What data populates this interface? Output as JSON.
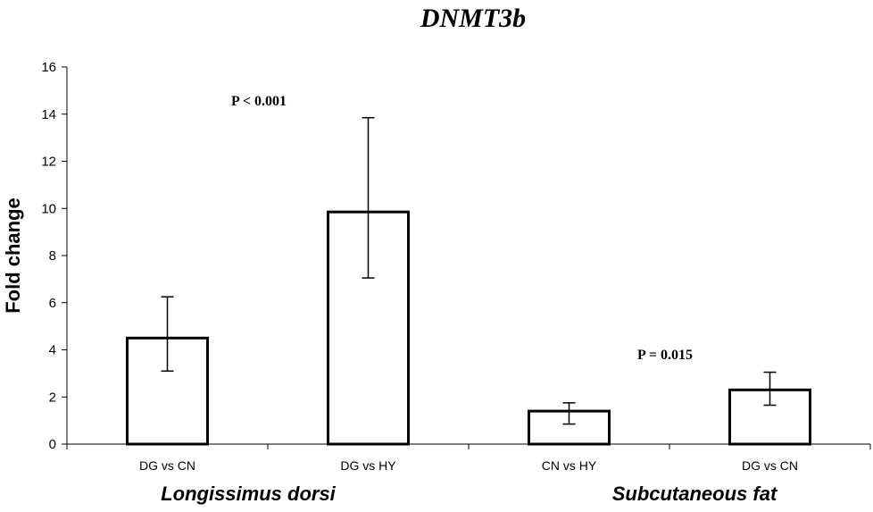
{
  "chart_data": {
    "type": "bar",
    "title": "DNMT3b",
    "ylabel": "Fold change",
    "xlabel": "",
    "ylim": [
      0,
      16
    ],
    "yticks": [
      0,
      2,
      4,
      6,
      8,
      10,
      12,
      14,
      16
    ],
    "grid": false,
    "legend": "none",
    "categories": [
      "DG vs CN",
      "DG vs HY",
      "CN vs HY",
      "DG vs CN"
    ],
    "values": [
      4.5,
      9.85,
      1.4,
      2.3
    ],
    "error_low": [
      3.1,
      7.05,
      0.85,
      1.65
    ],
    "error_high": [
      6.25,
      13.85,
      1.75,
      3.05
    ],
    "groups": [
      {
        "label": "Longissimus dorsi",
        "categories": [
          0,
          1
        ],
        "annotation": "P < 0.001"
      },
      {
        "label": "Subcutaneous fat",
        "categories": [
          2,
          3
        ],
        "annotation": "P = 0.015"
      }
    ],
    "colors": {
      "bar_fill": "#ffffff",
      "bar_stroke": "#000000",
      "axis": "#000000"
    }
  }
}
